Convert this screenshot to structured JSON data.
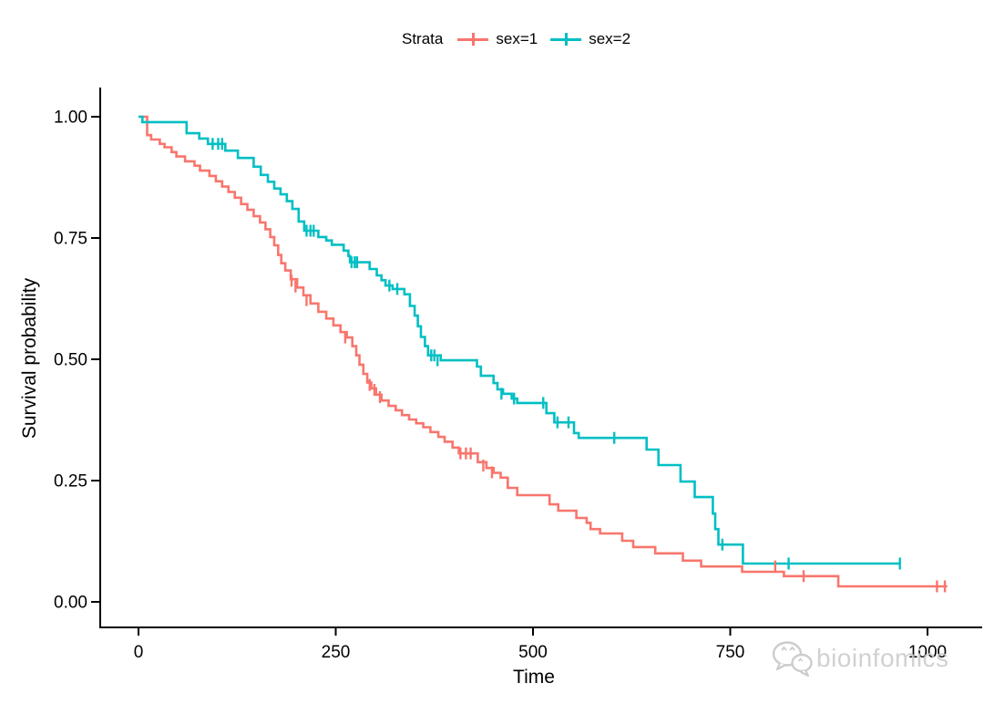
{
  "legend": {
    "title": "Strata",
    "items": [
      {
        "label": "sex=1",
        "color": "#F8766D"
      },
      {
        "label": "sex=2",
        "color": "#00BFC4"
      }
    ]
  },
  "watermark": {
    "text": "bioinfomics",
    "icon": "wechat-bubbles-icon",
    "color": "#cbcbcb"
  },
  "axis_color": "#000000",
  "chart_data": {
    "type": "line",
    "subtype": "kaplan-meier-step-curve",
    "title": "",
    "xlabel": "Time",
    "ylabel": "Survival probability",
    "xlim": [
      0,
      1025
    ],
    "ylim": [
      0,
      1
    ],
    "grid": false,
    "legend_position": "top-center",
    "xticks": [
      {
        "value": 0,
        "label": "0"
      },
      {
        "value": 250,
        "label": "250"
      },
      {
        "value": 500,
        "label": "500"
      },
      {
        "value": 750,
        "label": "750"
      },
      {
        "value": 1000,
        "label": "1000"
      }
    ],
    "yticks": [
      {
        "value": 0.0,
        "label": "0.00"
      },
      {
        "value": 0.25,
        "label": "0.25"
      },
      {
        "value": 0.5,
        "label": "0.50"
      },
      {
        "value": 0.75,
        "label": "0.75"
      },
      {
        "value": 1.0,
        "label": "1.00"
      }
    ],
    "series": [
      {
        "name": "sex=1",
        "color": "#F8766D",
        "end_time": 1025,
        "steps": [
          [
            0,
            1.0
          ],
          [
            11,
            0.962
          ],
          [
            16,
            0.953
          ],
          [
            27,
            0.944
          ],
          [
            33,
            0.937
          ],
          [
            42,
            0.927
          ],
          [
            48,
            0.918
          ],
          [
            59,
            0.908
          ],
          [
            71,
            0.899
          ],
          [
            78,
            0.889
          ],
          [
            90,
            0.878
          ],
          [
            98,
            0.867
          ],
          [
            106,
            0.856
          ],
          [
            114,
            0.845
          ],
          [
            122,
            0.833
          ],
          [
            130,
            0.82
          ],
          [
            138,
            0.808
          ],
          [
            146,
            0.795
          ],
          [
            154,
            0.782
          ],
          [
            161,
            0.768
          ],
          [
            167,
            0.752
          ],
          [
            172,
            0.735
          ],
          [
            177,
            0.715
          ],
          [
            181,
            0.698
          ],
          [
            186,
            0.683
          ],
          [
            193,
            0.665
          ],
          [
            201,
            0.648
          ],
          [
            209,
            0.632
          ],
          [
            218,
            0.615
          ],
          [
            228,
            0.598
          ],
          [
            238,
            0.584
          ],
          [
            247,
            0.57
          ],
          [
            256,
            0.556
          ],
          [
            264,
            0.545
          ],
          [
            271,
            0.527
          ],
          [
            276,
            0.508
          ],
          [
            280,
            0.489
          ],
          [
            285,
            0.47
          ],
          [
            290,
            0.452
          ],
          [
            295,
            0.44
          ],
          [
            301,
            0.427
          ],
          [
            308,
            0.415
          ],
          [
            317,
            0.404
          ],
          [
            326,
            0.395
          ],
          [
            334,
            0.385
          ],
          [
            343,
            0.376
          ],
          [
            352,
            0.368
          ],
          [
            361,
            0.36
          ],
          [
            370,
            0.35
          ],
          [
            380,
            0.34
          ],
          [
            388,
            0.33
          ],
          [
            398,
            0.318
          ],
          [
            406,
            0.306
          ],
          [
            430,
            0.288
          ],
          [
            441,
            0.276
          ],
          [
            450,
            0.266
          ],
          [
            459,
            0.256
          ],
          [
            468,
            0.235
          ],
          [
            480,
            0.22
          ],
          [
            521,
            0.201
          ],
          [
            532,
            0.188
          ],
          [
            555,
            0.173
          ],
          [
            568,
            0.163
          ],
          [
            573,
            0.15
          ],
          [
            585,
            0.141
          ],
          [
            613,
            0.126
          ],
          [
            627,
            0.113
          ],
          [
            655,
            0.1
          ],
          [
            690,
            0.085
          ],
          [
            713,
            0.073
          ],
          [
            765,
            0.062
          ],
          [
            818,
            0.053
          ],
          [
            887,
            0.032
          ]
        ],
        "censors": [
          [
            194,
            0.662
          ],
          [
            199,
            0.65
          ],
          [
            213,
            0.622
          ],
          [
            262,
            0.545
          ],
          [
            293,
            0.447
          ],
          [
            299,
            0.437
          ],
          [
            306,
            0.422
          ],
          [
            408,
            0.306
          ],
          [
            415,
            0.306
          ],
          [
            421,
            0.306
          ],
          [
            437,
            0.281
          ],
          [
            448,
            0.267
          ],
          [
            807,
            0.073
          ],
          [
            843,
            0.053
          ],
          [
            1012,
            0.032
          ],
          [
            1022,
            0.032
          ]
        ]
      },
      {
        "name": "sex=2",
        "color": "#00BFC4",
        "end_time": 965,
        "steps": [
          [
            0,
            1.0
          ],
          [
            5,
            0.989
          ],
          [
            61,
            0.966
          ],
          [
            77,
            0.955
          ],
          [
            88,
            0.944
          ],
          [
            110,
            0.93
          ],
          [
            126,
            0.915
          ],
          [
            146,
            0.897
          ],
          [
            155,
            0.88
          ],
          [
            164,
            0.866
          ],
          [
            172,
            0.852
          ],
          [
            180,
            0.84
          ],
          [
            188,
            0.826
          ],
          [
            195,
            0.81
          ],
          [
            203,
            0.784
          ],
          [
            210,
            0.765
          ],
          [
            228,
            0.752
          ],
          [
            238,
            0.745
          ],
          [
            245,
            0.736
          ],
          [
            260,
            0.724
          ],
          [
            266,
            0.713
          ],
          [
            268,
            0.7
          ],
          [
            293,
            0.686
          ],
          [
            302,
            0.673
          ],
          [
            308,
            0.663
          ],
          [
            313,
            0.652
          ],
          [
            322,
            0.645
          ],
          [
            337,
            0.634
          ],
          [
            344,
            0.61
          ],
          [
            350,
            0.59
          ],
          [
            354,
            0.568
          ],
          [
            358,
            0.546
          ],
          [
            363,
            0.527
          ],
          [
            367,
            0.508
          ],
          [
            383,
            0.498
          ],
          [
            429,
            0.485
          ],
          [
            434,
            0.466
          ],
          [
            450,
            0.451
          ],
          [
            455,
            0.438
          ],
          [
            462,
            0.429
          ],
          [
            473,
            0.419
          ],
          [
            480,
            0.41
          ],
          [
            517,
            0.389
          ],
          [
            527,
            0.37
          ],
          [
            552,
            0.348
          ],
          [
            558,
            0.338
          ],
          [
            644,
            0.314
          ],
          [
            659,
            0.282
          ],
          [
            687,
            0.248
          ],
          [
            705,
            0.216
          ],
          [
            728,
            0.182
          ],
          [
            731,
            0.15
          ],
          [
            735,
            0.118
          ],
          [
            766,
            0.079
          ]
        ],
        "censors": [
          [
            94,
            0.944
          ],
          [
            101,
            0.944
          ],
          [
            106,
            0.944
          ],
          [
            213,
            0.765
          ],
          [
            218,
            0.765
          ],
          [
            222,
            0.765
          ],
          [
            270,
            0.7
          ],
          [
            274,
            0.7
          ],
          [
            277,
            0.7
          ],
          [
            318,
            0.652
          ],
          [
            328,
            0.645
          ],
          [
            371,
            0.508
          ],
          [
            375,
            0.508
          ],
          [
            379,
            0.498
          ],
          [
            460,
            0.429
          ],
          [
            476,
            0.419
          ],
          [
            513,
            0.41
          ],
          [
            531,
            0.37
          ],
          [
            545,
            0.37
          ],
          [
            603,
            0.338
          ],
          [
            740,
            0.118
          ],
          [
            824,
            0.079
          ],
          [
            965,
            0.079
          ]
        ]
      }
    ]
  }
}
